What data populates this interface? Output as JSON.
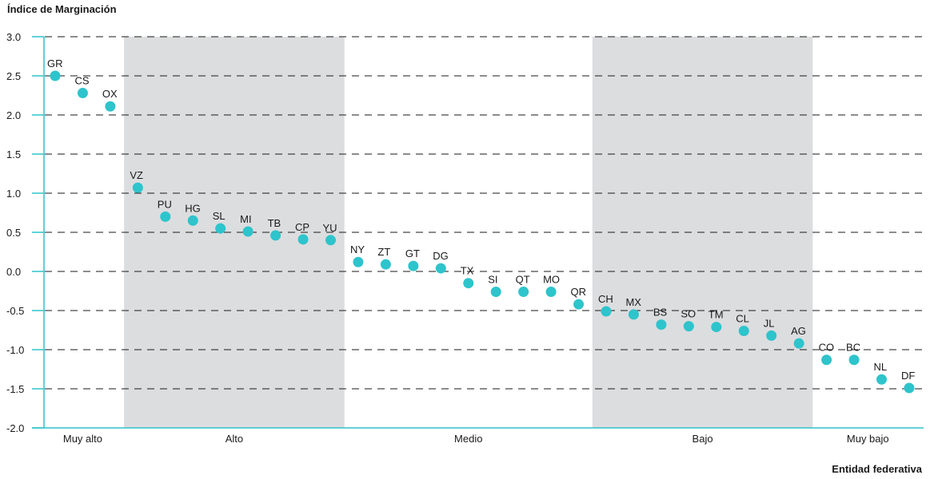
{
  "chart_data": {
    "type": "scatter",
    "title": "",
    "ylabel": "Índice de Marginación",
    "xlabel": "Entidad federativa",
    "ylim": [
      -2.0,
      3.0
    ],
    "yticks": [
      "3.0",
      "2.5",
      "2.0",
      "1.5",
      "1.0",
      "0.5",
      "0.0",
      "-0.5",
      "-1.0",
      "-1.5",
      "-2.0"
    ],
    "grid": true,
    "point_color": "#2ec4cc",
    "band_color": "#dcdddf",
    "axis_color": "#2ec4cc",
    "points": [
      {
        "label": "GR",
        "value": 2.5
      },
      {
        "label": "CS",
        "value": 2.28
      },
      {
        "label": "OX",
        "value": 2.11
      },
      {
        "label": "VZ",
        "value": 1.07
      },
      {
        "label": "PU",
        "value": 0.7
      },
      {
        "label": "HG",
        "value": 0.65
      },
      {
        "label": "SL",
        "value": 0.55
      },
      {
        "label": "MI",
        "value": 0.51
      },
      {
        "label": "TB",
        "value": 0.46
      },
      {
        "label": "CP",
        "value": 0.41
      },
      {
        "label": "YU",
        "value": 0.4
      },
      {
        "label": "NY",
        "value": 0.12
      },
      {
        "label": "ZT",
        "value": 0.09
      },
      {
        "label": "GT",
        "value": 0.07
      },
      {
        "label": "DG",
        "value": 0.04
      },
      {
        "label": "TX",
        "value": -0.15
      },
      {
        "label": "SI",
        "value": -0.26
      },
      {
        "label": "QT",
        "value": -0.26
      },
      {
        "label": "MO",
        "value": -0.26
      },
      {
        "label": "QR",
        "value": -0.42
      },
      {
        "label": "CH",
        "value": -0.51
      },
      {
        "label": "MX",
        "value": -0.55
      },
      {
        "label": "BS",
        "value": -0.68
      },
      {
        "label": "SO",
        "value": -0.7
      },
      {
        "label": "TM",
        "value": -0.71
      },
      {
        "label": "CL",
        "value": -0.76
      },
      {
        "label": "JL",
        "value": -0.82
      },
      {
        "label": "AG",
        "value": -0.92
      },
      {
        "label": "CO",
        "value": -1.13
      },
      {
        "label": "BC",
        "value": -1.13
      },
      {
        "label": "NL",
        "value": -1.38
      },
      {
        "label": "DF",
        "value": -1.49
      }
    ],
    "groups": [
      {
        "name": "Muy alto",
        "first": 0,
        "last": 2,
        "shaded": false
      },
      {
        "name": "Alto",
        "first": 3,
        "last": 10,
        "shaded": true
      },
      {
        "name": "Medio",
        "first": 11,
        "last": 19,
        "shaded": false
      },
      {
        "name": "Bajo",
        "first": 20,
        "last": 27,
        "shaded": true
      },
      {
        "name": "Muy bajo",
        "first": 28,
        "last": 31,
        "shaded": false
      }
    ]
  }
}
